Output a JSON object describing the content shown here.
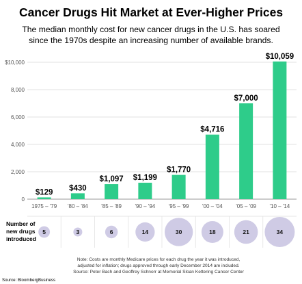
{
  "header": {
    "title": "Cancer Drugs Hit Market at Ever-Higher Prices",
    "subtitle_lines": [
      "The median monthly cost for new cancer drugs in the U.S. has soared",
      "since the 1970s despite an increasing number of available brands."
    ]
  },
  "chart_data": {
    "type": "bar",
    "categories": [
      "1975 – '79",
      "'80 – '84",
      "'85 – '89",
      "'90 – '94",
      "'95 – '99",
      "'00 – '04",
      "'05 – '09",
      "'10 – '14"
    ],
    "values": [
      129,
      430,
      1097,
      1199,
      1770,
      4716,
      7000,
      10059
    ],
    "value_labels": [
      "$129",
      "$430",
      "$1,097",
      "$1,199",
      "$1,770",
      "$4,716",
      "$7,000",
      "$10,059"
    ],
    "ylim": [
      0,
      10500
    ],
    "yticks": [
      0,
      2000,
      4000,
      6000,
      8000,
      10000
    ],
    "ytick_labels": [
      "0",
      "2,000",
      "4,000",
      "6,000",
      "8,000",
      "$10,000"
    ],
    "grid": "horizontal",
    "bar_color": "#2ecc8a",
    "new_drugs": {
      "label_lines": [
        "Number of",
        "new drugs",
        "introduced"
      ],
      "values": [
        5,
        3,
        6,
        14,
        30,
        18,
        21,
        34
      ],
      "bubble_color": "#cfcbe5"
    }
  },
  "footer": {
    "note_lines": [
      "Note: Costs are monthly Medicare prices for each drug the year it was introduced,",
      "adjusted for inflation; drugs approved through early December 2014 are included.",
      "Source: Peter Bach and Geoffrey Schnorr at Memorial Sloan Kettering Cancer Center"
    ],
    "source": "Source: BloombergBusiness"
  }
}
